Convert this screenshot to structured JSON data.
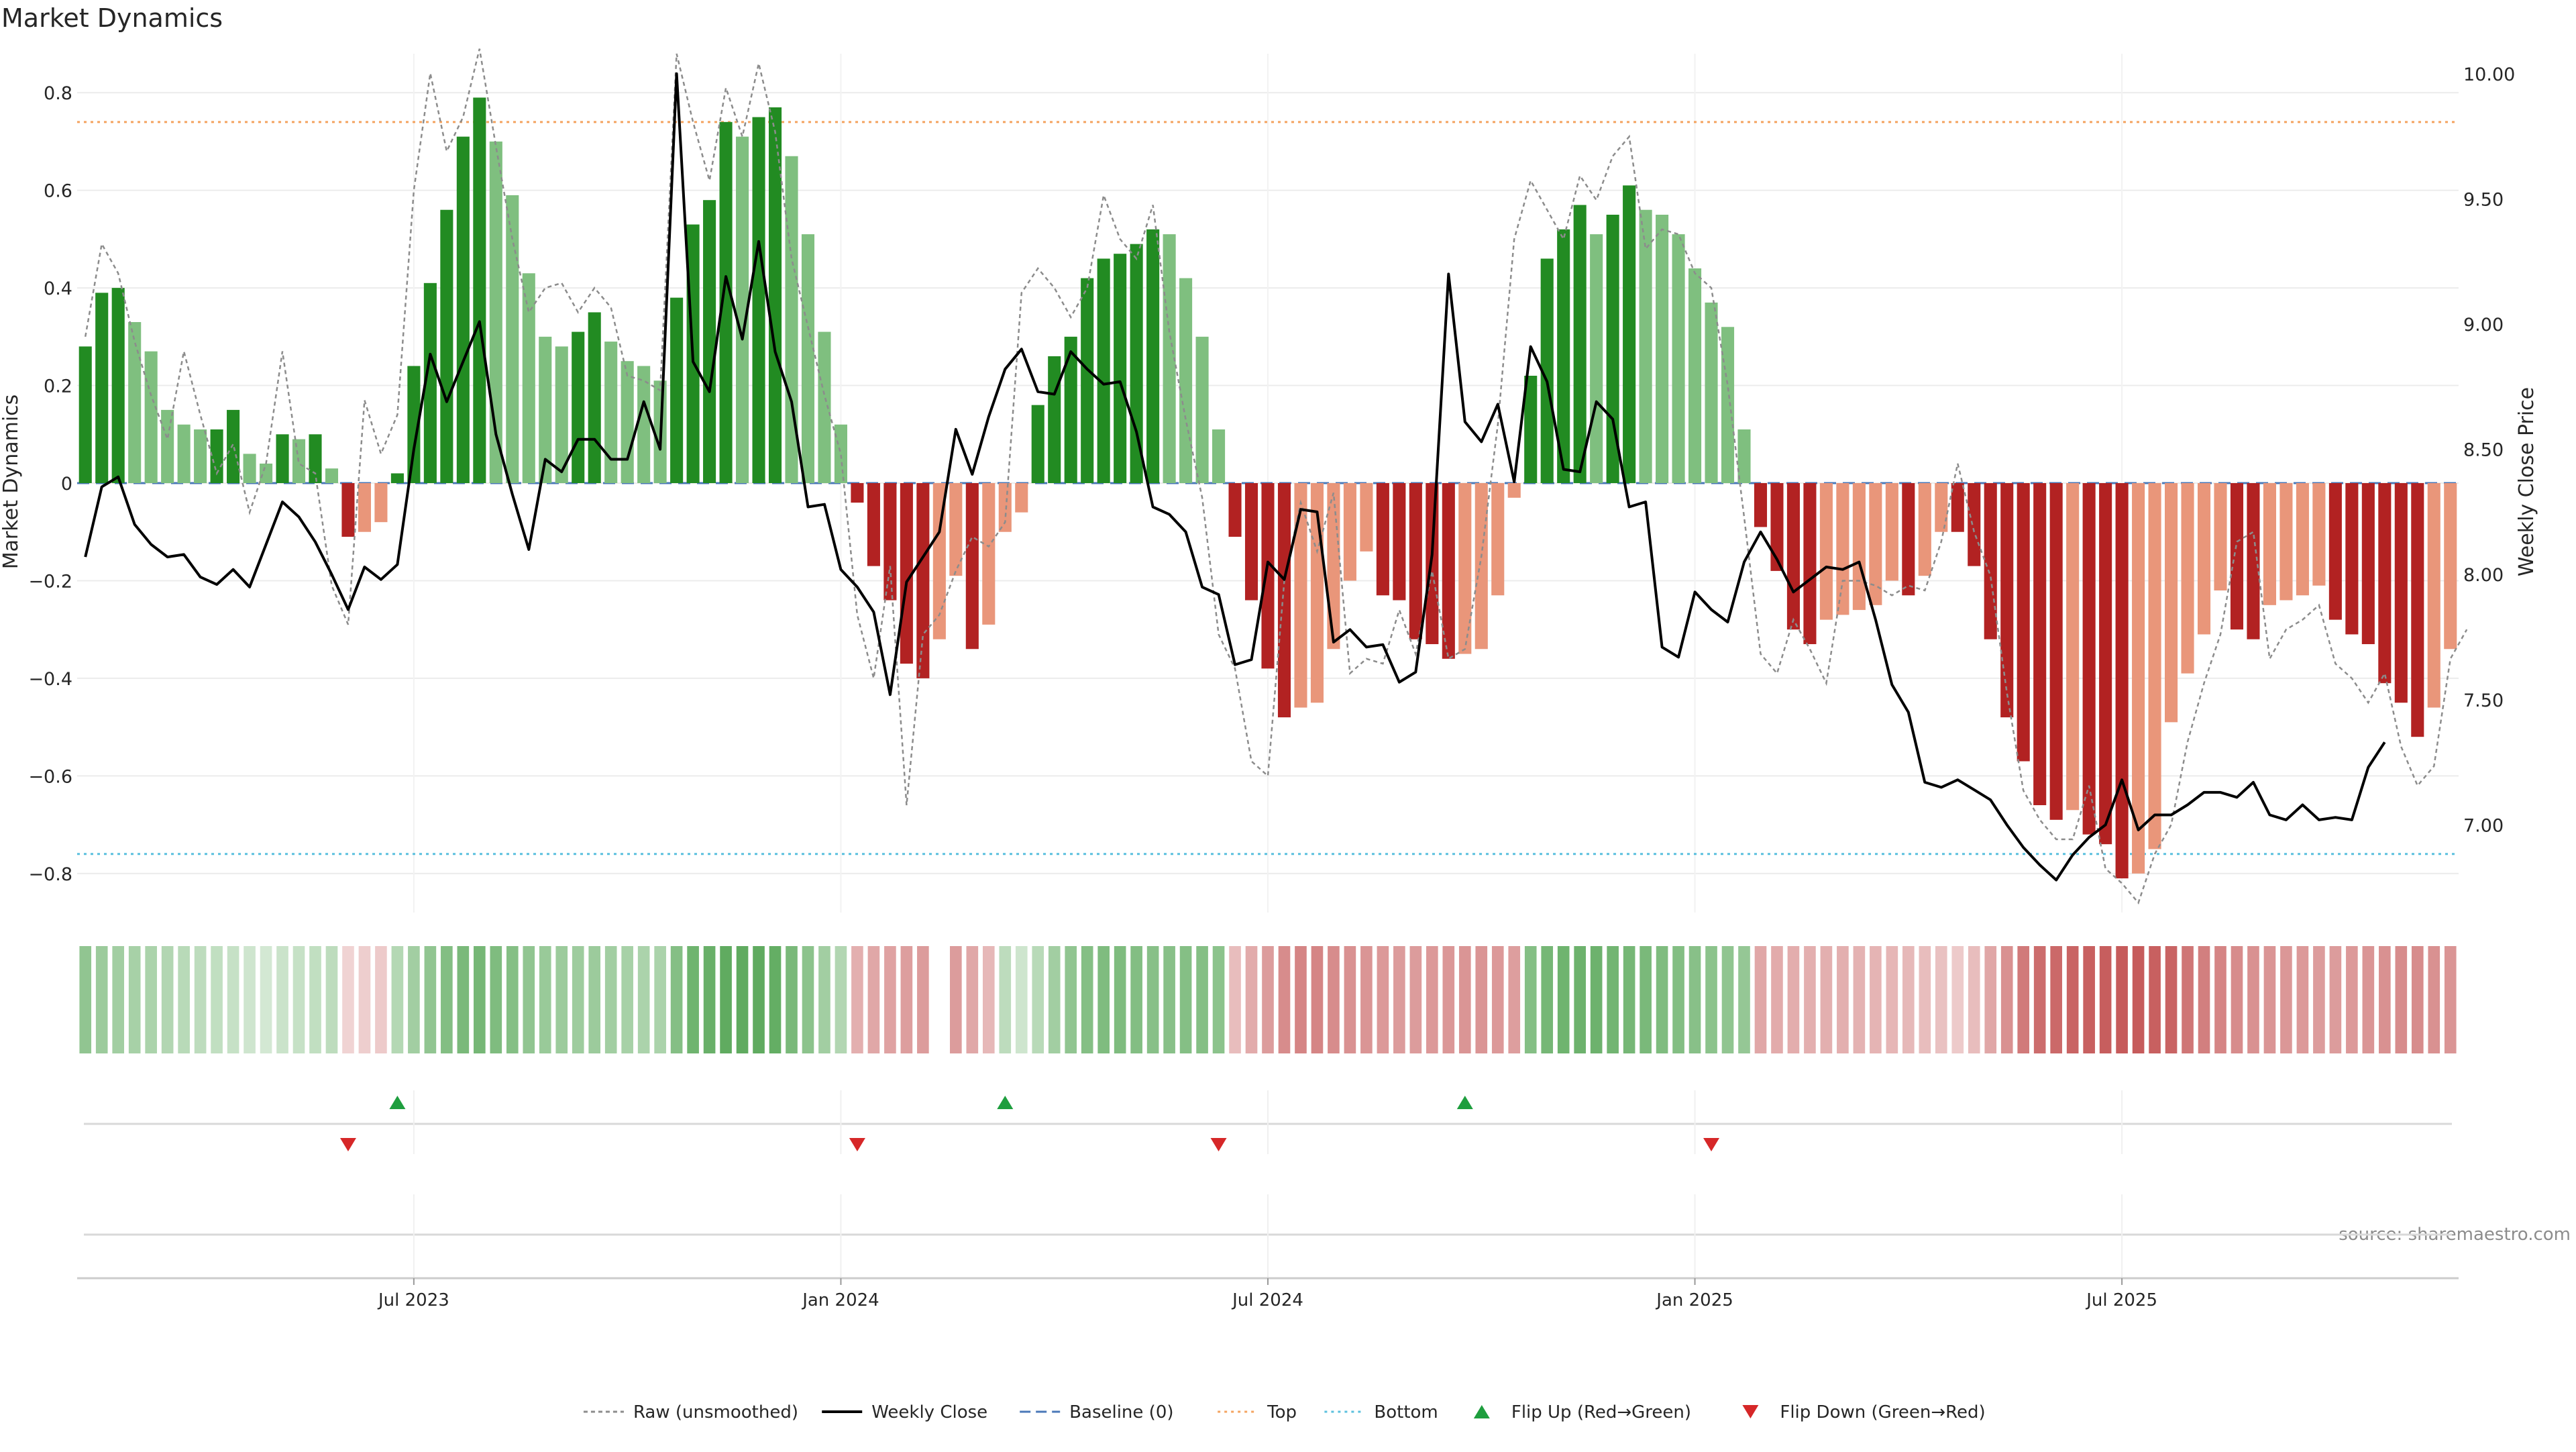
{
  "chart_data": {
    "type": "bar",
    "title": "Market Dynamics",
    "ylabel": "Market Dynamics",
    "y2label": "Weekly Close Price",
    "source_note": "source: sharemaestro.com",
    "ylim": [
      -0.88,
      0.88
    ],
    "y2lim": [
      6.65,
      10.08
    ],
    "y_ticks": [
      -0.8,
      -0.6,
      -0.4,
      -0.2,
      0,
      0.2,
      0.4,
      0.6,
      0.8
    ],
    "y_tick_labels": [
      "−0.8",
      "−0.6",
      "−0.4",
      "−0.2",
      "0",
      "0.2",
      "0.4",
      "0.6",
      "0.8"
    ],
    "y2_ticks": [
      7.0,
      7.5,
      8.0,
      8.5,
      9.0,
      9.5,
      10.0
    ],
    "y2_tick_labels": [
      "7.00",
      "7.50",
      "8.00",
      "8.50",
      "9.00",
      "9.50",
      "10.00"
    ],
    "x_ticks": [
      {
        "week": 20,
        "label": "Jul 2023"
      },
      {
        "week": 46,
        "label": "Jan 2024"
      },
      {
        "week": 72,
        "label": "Jul 2024"
      },
      {
        "week": 98,
        "label": "Jan 2025"
      },
      {
        "week": 124,
        "label": "Jul 2025"
      }
    ],
    "top_level": 0.74,
    "bottom_level": -0.76,
    "baseline": 0,
    "values": [
      0.28,
      0.39,
      0.4,
      0.33,
      0.27,
      0.15,
      0.12,
      0.11,
      0.11,
      0.15,
      0.06,
      0.04,
      0.1,
      0.09,
      0.1,
      0.03,
      -0.11,
      -0.1,
      -0.08,
      0.02,
      0.24,
      0.41,
      0.56,
      0.71,
      0.79,
      0.7,
      0.59,
      0.43,
      0.3,
      0.28,
      0.31,
      0.35,
      0.29,
      0.25,
      0.24,
      0.21,
      0.38,
      0.53,
      0.58,
      0.74,
      0.71,
      0.75,
      0.77,
      0.67,
      0.51,
      0.31,
      0.12,
      -0.04,
      -0.17,
      -0.24,
      -0.37,
      -0.4,
      -0.32,
      -0.19,
      -0.34,
      -0.29,
      -0.1,
      -0.06,
      0.16,
      0.26,
      0.3,
      0.42,
      0.46,
      0.47,
      0.49,
      0.52,
      0.51,
      0.42,
      0.3,
      0.11,
      -0.11,
      -0.24,
      -0.38,
      -0.48,
      -0.46,
      -0.45,
      -0.34,
      -0.2,
      -0.14,
      -0.23,
      -0.24,
      -0.32,
      -0.33,
      -0.36,
      -0.35,
      -0.34,
      -0.23,
      -0.03,
      0.22,
      0.46,
      0.52,
      0.57,
      0.51,
      0.55,
      0.61,
      0.56,
      0.55,
      0.51,
      0.44,
      0.37,
      0.32,
      0.11,
      -0.09,
      -0.18,
      -0.3,
      -0.33,
      -0.28,
      -0.27,
      -0.26,
      -0.25,
      -0.2,
      -0.23,
      -0.19,
      -0.1,
      -0.1,
      -0.17,
      -0.32,
      -0.48,
      -0.57,
      -0.66,
      -0.69,
      -0.67,
      -0.72,
      -0.74,
      -0.81,
      -0.8,
      -0.75,
      -0.49,
      -0.39,
      -0.31,
      -0.22,
      -0.3,
      -0.32,
      -0.25,
      -0.24,
      -0.23,
      -0.21,
      -0.28,
      -0.31,
      -0.33,
      -0.41,
      -0.45,
      -0.52,
      -0.46,
      -0.34
    ],
    "raw_values": [
      0.3,
      0.49,
      0.43,
      0.29,
      0.18,
      0.09,
      0.27,
      0.14,
      0.02,
      0.08,
      -0.06,
      0.04,
      0.27,
      0.04,
      0.02,
      -0.21,
      -0.29,
      0.17,
      0.06,
      0.14,
      0.6,
      0.84,
      0.68,
      0.75,
      0.89,
      0.69,
      0.5,
      0.35,
      0.4,
      0.41,
      0.35,
      0.4,
      0.36,
      0.22,
      0.21,
      0.19,
      0.88,
      0.74,
      0.62,
      0.81,
      0.71,
      0.86,
      0.72,
      0.46,
      0.32,
      0.18,
      0.06,
      -0.27,
      -0.4,
      -0.17,
      -0.66,
      -0.31,
      -0.27,
      -0.18,
      -0.11,
      -0.13,
      -0.08,
      0.39,
      0.44,
      0.4,
      0.34,
      0.4,
      0.59,
      0.5,
      0.46,
      0.57,
      0.31,
      0.13,
      -0.03,
      -0.31,
      -0.38,
      -0.57,
      -0.6,
      -0.2,
      -0.04,
      -0.14,
      -0.02,
      -0.39,
      -0.36,
      -0.37,
      -0.26,
      -0.35,
      -0.18,
      -0.36,
      -0.34,
      -0.15,
      0.12,
      0.5,
      0.62,
      0.56,
      0.5,
      0.63,
      0.58,
      0.67,
      0.71,
      0.48,
      0.52,
      0.51,
      0.43,
      0.4,
      0.2,
      -0.07,
      -0.35,
      -0.39,
      -0.28,
      -0.34,
      -0.41,
      -0.2,
      -0.2,
      -0.21,
      -0.23,
      -0.21,
      -0.22,
      -0.12,
      0.04,
      -0.1,
      -0.19,
      -0.43,
      -0.63,
      -0.69,
      -0.73,
      -0.73,
      -0.62,
      -0.79,
      -0.82,
      -0.86,
      -0.76,
      -0.7,
      -0.53,
      -0.41,
      -0.31,
      -0.12,
      -0.1,
      -0.36,
      -0.3,
      -0.28,
      -0.25,
      -0.37,
      -0.4,
      -0.45,
      -0.39,
      -0.54,
      -0.62,
      -0.58,
      -0.36,
      -0.3
    ],
    "weekly_close": [
      8.07,
      8.35,
      8.39,
      8.2,
      8.12,
      8.07,
      8.08,
      7.99,
      7.96,
      8.02,
      7.95,
      8.12,
      8.29,
      8.23,
      8.13,
      8.0,
      7.86,
      8.03,
      7.98,
      8.04,
      8.5,
      8.88,
      8.69,
      8.85,
      9.01,
      8.56,
      8.32,
      8.1,
      8.46,
      8.41,
      8.54,
      8.54,
      8.46,
      8.46,
      8.69,
      8.5,
      10.0,
      8.85,
      8.73,
      9.19,
      8.94,
      9.33,
      8.89,
      8.69,
      8.27,
      8.28,
      8.02,
      7.95,
      7.85,
      7.52,
      7.97,
      8.07,
      8.17,
      8.58,
      8.4,
      8.63,
      8.82,
      8.9,
      8.73,
      8.72,
      8.89,
      8.82,
      8.76,
      8.77,
      8.57,
      8.27,
      8.24,
      8.17,
      7.95,
      7.92,
      7.64,
      7.66,
      8.05,
      7.98,
      8.26,
      8.25,
      7.73,
      7.78,
      7.71,
      7.72,
      7.57,
      7.61,
      8.08,
      9.2,
      8.61,
      8.53,
      8.68,
      8.37,
      8.91,
      8.77,
      8.42,
      8.41,
      8.69,
      8.62,
      8.27,
      8.29,
      7.71,
      7.67,
      7.93,
      7.86,
      7.81,
      8.05,
      8.17,
      8.06,
      7.93,
      7.98,
      8.03,
      8.02,
      8.05,
      7.82,
      7.56,
      7.45,
      7.17,
      7.15,
      7.18,
      7.14,
      7.1,
      7.0,
      6.91,
      6.84,
      6.78,
      6.88,
      6.95,
      7.0,
      7.18,
      6.98,
      7.04,
      7.04,
      7.08,
      7.13,
      7.13,
      7.11,
      7.17,
      7.04,
      7.02,
      7.08,
      7.02,
      7.03,
      7.02,
      7.23,
      7.33
    ],
    "signal_strength": [
      0.5,
      0.45,
      0.42,
      0.4,
      0.38,
      0.35,
      0.32,
      0.3,
      0.28,
      0.26,
      0.22,
      0.2,
      0.24,
      0.26,
      0.28,
      0.3,
      -0.2,
      -0.22,
      -0.24,
      0.34,
      0.42,
      0.5,
      0.56,
      0.6,
      0.62,
      0.58,
      0.55,
      0.5,
      0.46,
      0.45,
      0.44,
      0.45,
      0.42,
      0.4,
      0.38,
      0.38,
      0.55,
      0.65,
      0.68,
      0.72,
      0.72,
      0.72,
      0.7,
      0.6,
      0.52,
      0.42,
      0.35,
      -0.36,
      -0.4,
      -0.42,
      -0.44,
      -0.45,
      null,
      -0.45,
      -0.4,
      -0.32,
      0.3,
      0.22,
      0.32,
      0.42,
      0.5,
      0.55,
      0.58,
      0.58,
      0.56,
      0.54,
      0.54,
      0.55,
      0.55,
      0.52,
      -0.3,
      -0.38,
      -0.45,
      -0.52,
      -0.55,
      -0.55,
      -0.52,
      -0.5,
      -0.48,
      -0.46,
      -0.45,
      -0.45,
      -0.46,
      -0.47,
      -0.48,
      -0.48,
      -0.46,
      -0.44,
      0.55,
      0.62,
      0.65,
      0.66,
      0.66,
      0.64,
      0.62,
      0.6,
      0.58,
      0.56,
      0.54,
      0.52,
      0.5,
      0.48,
      -0.4,
      -0.38,
      -0.37,
      -0.36,
      -0.36,
      -0.36,
      -0.35,
      -0.34,
      -0.33,
      -0.32,
      -0.3,
      -0.28,
      -0.24,
      -0.3,
      -0.4,
      -0.5,
      -0.6,
      -0.66,
      -0.68,
      -0.7,
      -0.72,
      -0.73,
      -0.74,
      -0.74,
      -0.72,
      -0.7,
      -0.62,
      -0.58,
      -0.55,
      -0.52,
      -0.5,
      -0.48,
      -0.47,
      -0.46,
      -0.45,
      -0.45,
      -0.46,
      -0.48,
      -0.5,
      -0.52,
      -0.52,
      -0.5,
      -0.48
    ],
    "flip_up_weeks": [
      19,
      56,
      84
    ],
    "flip_down_weeks": [
      16,
      47,
      69,
      99
    ],
    "colors": {
      "strong_green": "#228b22",
      "light_green": "#7fbf7f",
      "strong_red": "#b22222",
      "light_red": "#e9967a",
      "raw_line": "#8c8c8c",
      "close_line": "#000000",
      "baseline": "#4a78b8",
      "top": "#f4a460",
      "bottom": "#5bc0de",
      "flip_up": "#1e9e3e",
      "flip_down": "#d62728"
    },
    "legend_position": "bottom-center",
    "legend": [
      {
        "key": "raw",
        "label": "Raw (unsmoothed)"
      },
      {
        "key": "close",
        "label": "Weekly Close"
      },
      {
        "key": "baseline",
        "label": "Baseline (0)"
      },
      {
        "key": "top",
        "label": "Top"
      },
      {
        "key": "bottom",
        "label": "Bottom"
      },
      {
        "key": "flip_up",
        "label": "Flip Up (Red→Green)"
      },
      {
        "key": "flip_down",
        "label": "Flip Down (Green→Red)"
      }
    ]
  }
}
